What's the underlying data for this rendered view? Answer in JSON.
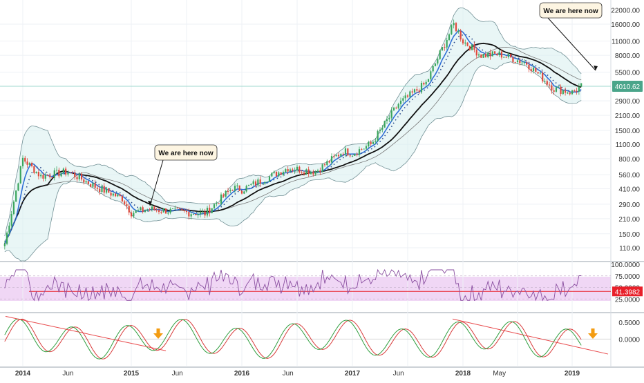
{
  "colors": {
    "background": "#ffffff",
    "grid": "#eef1f5",
    "separator": "#9aa3ad",
    "band_fill": "#d7eeee",
    "band_line": "#6f8e93",
    "up_candle": "#3ba55d",
    "down_candle": "#e0483b",
    "ma_blue": "#2f6fd6",
    "ma_black": "#111111",
    "ma_thin": "#777777",
    "sar_dots": "#2a4a8c",
    "price_line": "#9fd8cf",
    "price_badge": "#4aa58a",
    "rsi_line": "#8a4fa0",
    "rsi_band": "#f0d7f5",
    "rsi_badge": "#e8202a",
    "osc_green": "#2e9e3e",
    "osc_red": "#d83a3a",
    "trend_line": "#e8494b",
    "arrow": "#f39c12",
    "text": "#333333"
  },
  "price_axis": [
    "22000.00",
    "16000.00",
    "11000.00",
    "8000.00",
    "5500.00",
    "4010.62",
    "2900.00",
    "2100.00",
    "1500.00",
    "1100.00",
    "800.00",
    "560.00",
    "410.00",
    "290.00",
    "210.00",
    "150.00",
    "110.00"
  ],
  "price_tag": "4010.62",
  "rsi_axis": [
    "100.0000",
    "75.0000",
    "50.0000",
    "41.3982",
    "25.0000"
  ],
  "rsi_tag": "41.3982",
  "osc_axis": [
    "0.5000",
    "0.0000"
  ],
  "time_axis": [
    "2014",
    "Jun",
    "2015",
    "Jun",
    "2016",
    "Jun",
    "2017",
    "Jun",
    "2018",
    "May",
    "2019"
  ],
  "callouts": [
    "We are here now",
    "We are here now"
  ],
  "chart_data": {
    "type": "candlestick",
    "scale": "log",
    "panels": [
      "price",
      "rsi",
      "oscillator"
    ],
    "x": [
      "2013-11",
      "2014-01",
      "2014-03",
      "2014-06",
      "2014-09",
      "2014-12",
      "2015-01",
      "2015-03",
      "2015-06",
      "2015-09",
      "2015-12",
      "2016-01",
      "2016-06",
      "2016-09",
      "2016-12",
      "2017-01",
      "2017-03",
      "2017-06",
      "2017-09",
      "2017-12",
      "2018-01",
      "2018-03",
      "2018-05",
      "2018-08",
      "2018-11",
      "2019-01",
      "2019-02"
    ],
    "close": [
      120,
      800,
      540,
      600,
      430,
      330,
      240,
      260,
      245,
      235,
      420,
      400,
      650,
      600,
      950,
      900,
      1100,
      2700,
      4300,
      16000,
      11000,
      8000,
      8200,
      6700,
      3800,
      3500,
      4010.62
    ],
    "rsi_last": 41.3982,
    "rsi_levels": [
      75,
      25
    ],
    "ylim_price": [
      90,
      25000
    ],
    "ylim_rsi": [
      0,
      100
    ],
    "ylim_osc": [
      -0.8,
      0.75
    ]
  }
}
